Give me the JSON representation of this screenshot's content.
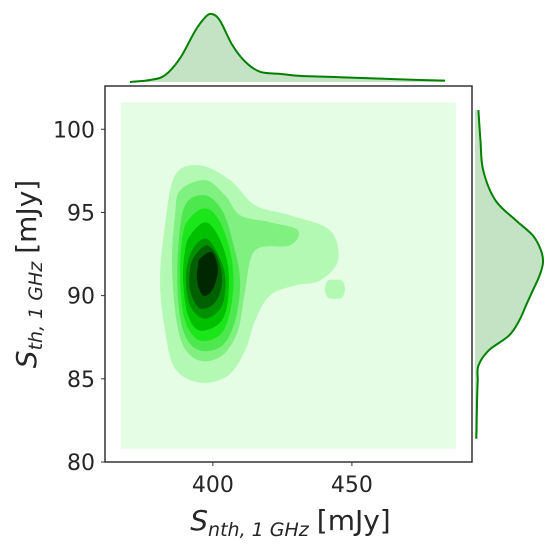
{
  "chart_data": {
    "type": "kde2d",
    "x_label": {
      "symbol": "S",
      "subscript": "nth, 1 GHz",
      "unit": "[mJy]"
    },
    "y_label": {
      "symbol": "S",
      "subscript": "th, 1 GHz",
      "unit": "[mJy]"
    },
    "xlim": [
      361.2,
      493.2
    ],
    "xticks": [
      400,
      450
    ],
    "ylim": [
      80,
      102.6
    ],
    "yticks": [
      80,
      85,
      90,
      95,
      100
    ],
    "contours": [
      {
        "color": "#e5fde5",
        "smooth": false,
        "x": [
          366.9,
          487.4,
          487.4,
          366.9
        ],
        "y": [
          101.6,
          101.6,
          80.8,
          80.8
        ]
      },
      {
        "color": "#b3f8b3",
        "smooth": true,
        "x": [
          386.4,
          395.4,
          406.2,
          415.2,
          427.7,
          442.1,
          445.0,
          438.5,
          429.5,
          420.5,
          415.2,
          411.6,
          405.4,
          395.4,
          386.4,
          382.8,
          381.0,
          382.8
        ],
        "y": [
          97.24,
          97.84,
          96.94,
          95.43,
          94.83,
          93.93,
          92.12,
          90.91,
          90.61,
          90.01,
          88.5,
          86.7,
          85.19,
          84.77,
          85.61,
          87.9,
          90.91,
          94.23
        ]
      },
      {
        "color": "#b3f8b3",
        "smooth": true,
        "x": [
          440.3,
          441.3,
          443.9,
          446.5,
          447.5,
          446.5,
          443.9,
          441.3
        ],
        "y": [
          90.4,
          90.9,
          90.95,
          90.9,
          90.4,
          89.9,
          89.8,
          89.9
        ]
      },
      {
        "color": "#80f080",
        "smooth": true,
        "x": [
          388.2,
          397.2,
          404.4,
          409.8,
          420.5,
          430.6,
          427.7,
          415.2,
          411.6,
          409.0,
          403.3,
          395.4,
          389.3,
          386.4,
          385.3,
          386.4
        ],
        "y": [
          96.33,
          96.94,
          96.03,
          94.83,
          94.41,
          93.93,
          93.02,
          92.72,
          90.31,
          87.9,
          86.4,
          86.09,
          86.99,
          89.11,
          92.12,
          94.83
        ]
      },
      {
        "color": "#4de84d",
        "smooth": true,
        "x": [
          390.0,
          397.2,
          403.3,
          407.0,
          409.8,
          408.0,
          403.3,
          395.4,
          390.0,
          387.5,
          387.5
        ],
        "y": [
          95.43,
          96.03,
          95.13,
          93.32,
          90.91,
          88.5,
          86.99,
          86.7,
          87.6,
          89.71,
          92.72
        ]
      },
      {
        "color": "#1ae61a",
        "smooth": true,
        "x": [
          391.1,
          397.2,
          402.6,
          406.9,
          406.9,
          403.3,
          395.4,
          390.0,
          388.2,
          388.9
        ],
        "y": [
          94.53,
          95.25,
          94.41,
          92.12,
          89.71,
          87.78,
          87.3,
          88.5,
          90.91,
          93.32
        ]
      },
      {
        "color": "#00c000",
        "smooth": true,
        "x": [
          391.8,
          397.2,
          401.8,
          405.4,
          405.4,
          402.6,
          395.4,
          391.1,
          389.3,
          390.0
        ],
        "y": [
          93.62,
          94.41,
          93.62,
          91.82,
          89.71,
          88.38,
          87.9,
          88.8,
          90.91,
          92.72
        ]
      },
      {
        "color": "#009000",
        "smooth": true,
        "x": [
          392.5,
          397.2,
          401.1,
          404.4,
          403.3,
          397.2,
          391.8,
          390.3
        ],
        "y": [
          92.72,
          93.44,
          92.72,
          91.21,
          89.41,
          88.62,
          89.41,
          91.21
        ]
      },
      {
        "color": "#006000",
        "smooth": true,
        "x": [
          393.6,
          397.9,
          401.8,
          403.3,
          400.8,
          395.4,
          391.8,
          391.8
        ],
        "y": [
          92.42,
          93.02,
          92.24,
          90.79,
          89.59,
          89.23,
          90.31,
          91.64
        ]
      },
      {
        "color": "#002800",
        "smooth": true,
        "x": [
          395.4,
          399.7,
          401.8,
          399.7,
          396.4,
          394.3,
          394.7
        ],
        "y": [
          92.24,
          92.6,
          91.52,
          90.31,
          90.01,
          90.91,
          91.82
        ]
      }
    ],
    "marginal_color": "#008000",
    "marginal_fill": "#c4e2c4",
    "x_marginal": {
      "x": [
        370.2,
        377.4,
        382.8,
        388.2,
        393.6,
        397.2,
        399.7,
        402.6,
        406.9,
        411.6,
        417.0,
        424.1,
        431.3,
        445.7,
        460.1,
        474.5,
        483.5
      ],
      "density": [
        0,
        0.03,
        0.1,
        0.35,
        0.75,
        0.95,
        1.0,
        0.9,
        0.55,
        0.3,
        0.15,
        0.12,
        0.09,
        0.07,
        0.05,
        0.03,
        0.02
      ]
    },
    "y_marginal": {
      "y": [
        101.15,
        99.35,
        97.54,
        95.73,
        94.53,
        93.62,
        92.72,
        91.99,
        91.21,
        90.31,
        89.41,
        88.5,
        87.6,
        86.7,
        85.79,
        84.89,
        83.69,
        81.4
      ],
      "density": [
        0.05,
        0.08,
        0.12,
        0.3,
        0.6,
        0.85,
        0.97,
        1.0,
        0.95,
        0.85,
        0.75,
        0.65,
        0.5,
        0.2,
        0.05,
        0.04,
        0.03,
        0.02
      ]
    },
    "density_lim": [
      0,
      1
    ]
  }
}
